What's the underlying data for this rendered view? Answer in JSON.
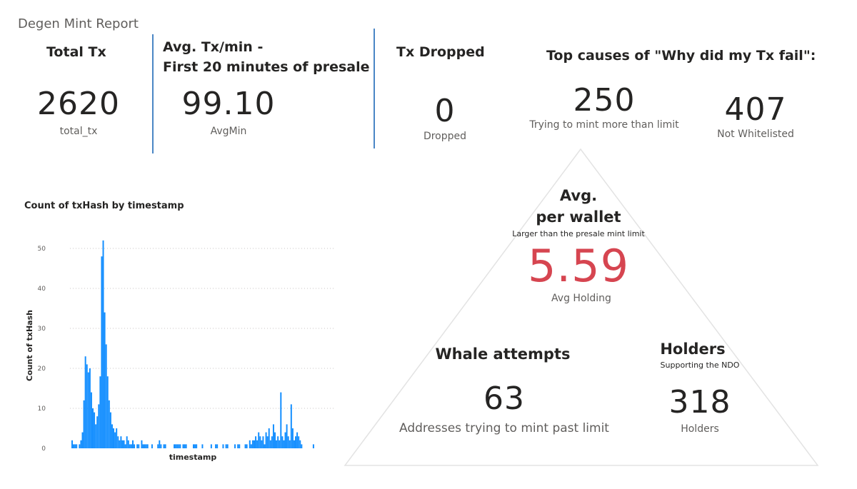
{
  "report": {
    "title": "Degen Mint Report"
  },
  "kpis": {
    "total_tx": {
      "title": "Total Tx",
      "value": "2620",
      "caption": "total_tx"
    },
    "avg_tx_min": {
      "title_line1": "Avg. Tx/min -",
      "title_line2": "First 20 minutes of presale",
      "value": "99.10",
      "caption": "AvgMin"
    },
    "tx_dropped": {
      "title": "Tx Dropped",
      "value": "0",
      "caption": "Dropped"
    },
    "top_causes": {
      "title": "Top causes of \"Why did my Tx fail\":",
      "items": [
        {
          "value": "250",
          "caption": "Trying to mint more than limit"
        },
        {
          "value": "407",
          "caption": "Not Whitelisted"
        }
      ]
    }
  },
  "pyramid": {
    "avg_per_wallet": {
      "title_line1": "Avg.",
      "title_line2": "per wallet",
      "subtitle": "Larger than the presale mint limit",
      "value": "5.59",
      "caption": "Avg Holding",
      "value_color": "#d64550"
    },
    "whale_attempts": {
      "title": "Whale attempts",
      "value": "63",
      "caption": "Addresses trying to mint past limit"
    },
    "holders": {
      "title": "Holders",
      "subtitle": "Supporting the NDO",
      "value": "318",
      "caption": "Holders"
    }
  },
  "colors": {
    "bar": "#118dff",
    "divider": "#4a86c5"
  },
  "chart_data": {
    "type": "bar",
    "title": "Count of txHash by timestamp",
    "xlabel": "timestamp",
    "ylabel": "Count of txHash",
    "ylim": [
      0,
      55
    ],
    "yticks": [
      0,
      10,
      20,
      30,
      40,
      50
    ],
    "grid": true,
    "values": [
      2,
      1,
      1,
      1,
      0,
      1,
      2,
      4,
      12,
      23,
      21,
      19,
      20,
      14,
      10,
      9,
      6,
      8,
      11,
      18,
      48,
      52,
      34,
      26,
      18,
      12,
      9,
      6,
      5,
      4,
      5,
      3,
      2,
      3,
      2,
      2,
      1,
      3,
      2,
      1,
      1,
      2,
      1,
      0,
      1,
      1,
      0,
      2,
      1,
      1,
      1,
      1,
      0,
      0,
      1,
      0,
      0,
      0,
      1,
      2,
      1,
      0,
      1,
      1,
      0,
      0,
      0,
      0,
      0,
      1,
      1,
      1,
      1,
      1,
      0,
      1,
      1,
      1,
      0,
      0,
      0,
      0,
      1,
      1,
      1,
      0,
      0,
      0,
      1,
      0,
      0,
      0,
      0,
      0,
      1,
      0,
      0,
      1,
      1,
      0,
      0,
      0,
      1,
      0,
      1,
      1,
      0,
      0,
      0,
      0,
      1,
      0,
      1,
      1,
      0,
      0,
      0,
      1,
      1,
      0,
      2,
      1,
      2,
      2,
      3,
      2,
      4,
      3,
      2,
      3,
      1,
      4,
      3,
      5,
      2,
      3,
      6,
      4,
      2,
      3,
      2,
      14,
      3,
      2,
      4,
      6,
      3,
      2,
      11,
      5,
      2,
      3,
      4,
      3,
      2,
      1,
      0,
      0,
      0,
      0,
      0,
      0,
      0,
      1
    ]
  }
}
